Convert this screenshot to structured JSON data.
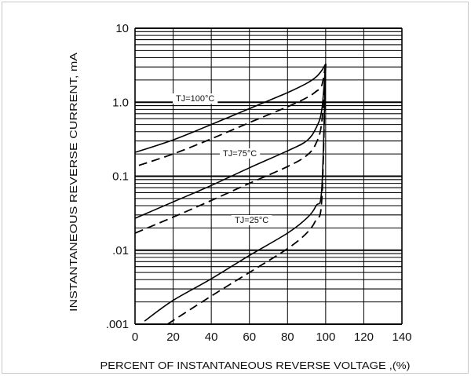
{
  "chart_data": {
    "type": "line",
    "title": "",
    "xlabel": "PERCENT OF INSTANTANEOUS REVERSE VOLTAGE ,(%)",
    "ylabel": "INSTANTANEOUS  REVERSE  CURRENT, mA",
    "xlim": [
      0,
      140
    ],
    "ylim": [
      0.001,
      10
    ],
    "yscale": "log",
    "grid": true,
    "x_ticks": [
      "0",
      "20",
      "40",
      "60",
      "80",
      "100",
      "120",
      "140"
    ],
    "y_ticks": [
      ".001",
      ".01",
      "0.1",
      "1.0",
      "10"
    ],
    "annotations": [
      "TJ=100°C",
      "TJ=75°C",
      "TJ=25°C"
    ],
    "series": [
      {
        "style": "solid",
        "x": [
          0,
          20,
          40,
          60,
          80,
          90,
          95,
          98,
          100
        ],
        "y": [
          0.21,
          0.31,
          0.5,
          0.82,
          1.35,
          1.8,
          2.2,
          2.7,
          3.3
        ]
      },
      {
        "style": "dashed",
        "x": [
          2,
          20,
          40,
          60,
          80,
          90,
          95,
          98,
          100
        ],
        "y": [
          0.14,
          0.2,
          0.32,
          0.53,
          0.87,
          1.15,
          1.4,
          1.7,
          3.3
        ]
      },
      {
        "style": "solid",
        "x": [
          0,
          20,
          40,
          60,
          80,
          90,
          95,
          98,
          100
        ],
        "y": [
          0.027,
          0.045,
          0.075,
          0.13,
          0.22,
          0.3,
          0.45,
          0.8,
          3.3
        ]
      },
      {
        "style": "dashed",
        "x": [
          0,
          20,
          40,
          60,
          80,
          90,
          95,
          98,
          100
        ],
        "y": [
          0.017,
          0.028,
          0.047,
          0.08,
          0.135,
          0.19,
          0.28,
          0.55,
          3.3
        ]
      },
      {
        "style": "solid",
        "x": [
          5,
          20,
          40,
          60,
          80,
          90,
          95,
          98,
          100
        ],
        "y": [
          0.0011,
          0.0021,
          0.0041,
          0.0085,
          0.017,
          0.027,
          0.04,
          0.07,
          3.3
        ]
      },
      {
        "style": "dashed",
        "x": [
          17,
          40,
          60,
          80,
          90,
          95,
          98,
          100
        ],
        "y": [
          0.001,
          0.0024,
          0.005,
          0.0105,
          0.017,
          0.026,
          0.05,
          3.3
        ]
      }
    ]
  }
}
